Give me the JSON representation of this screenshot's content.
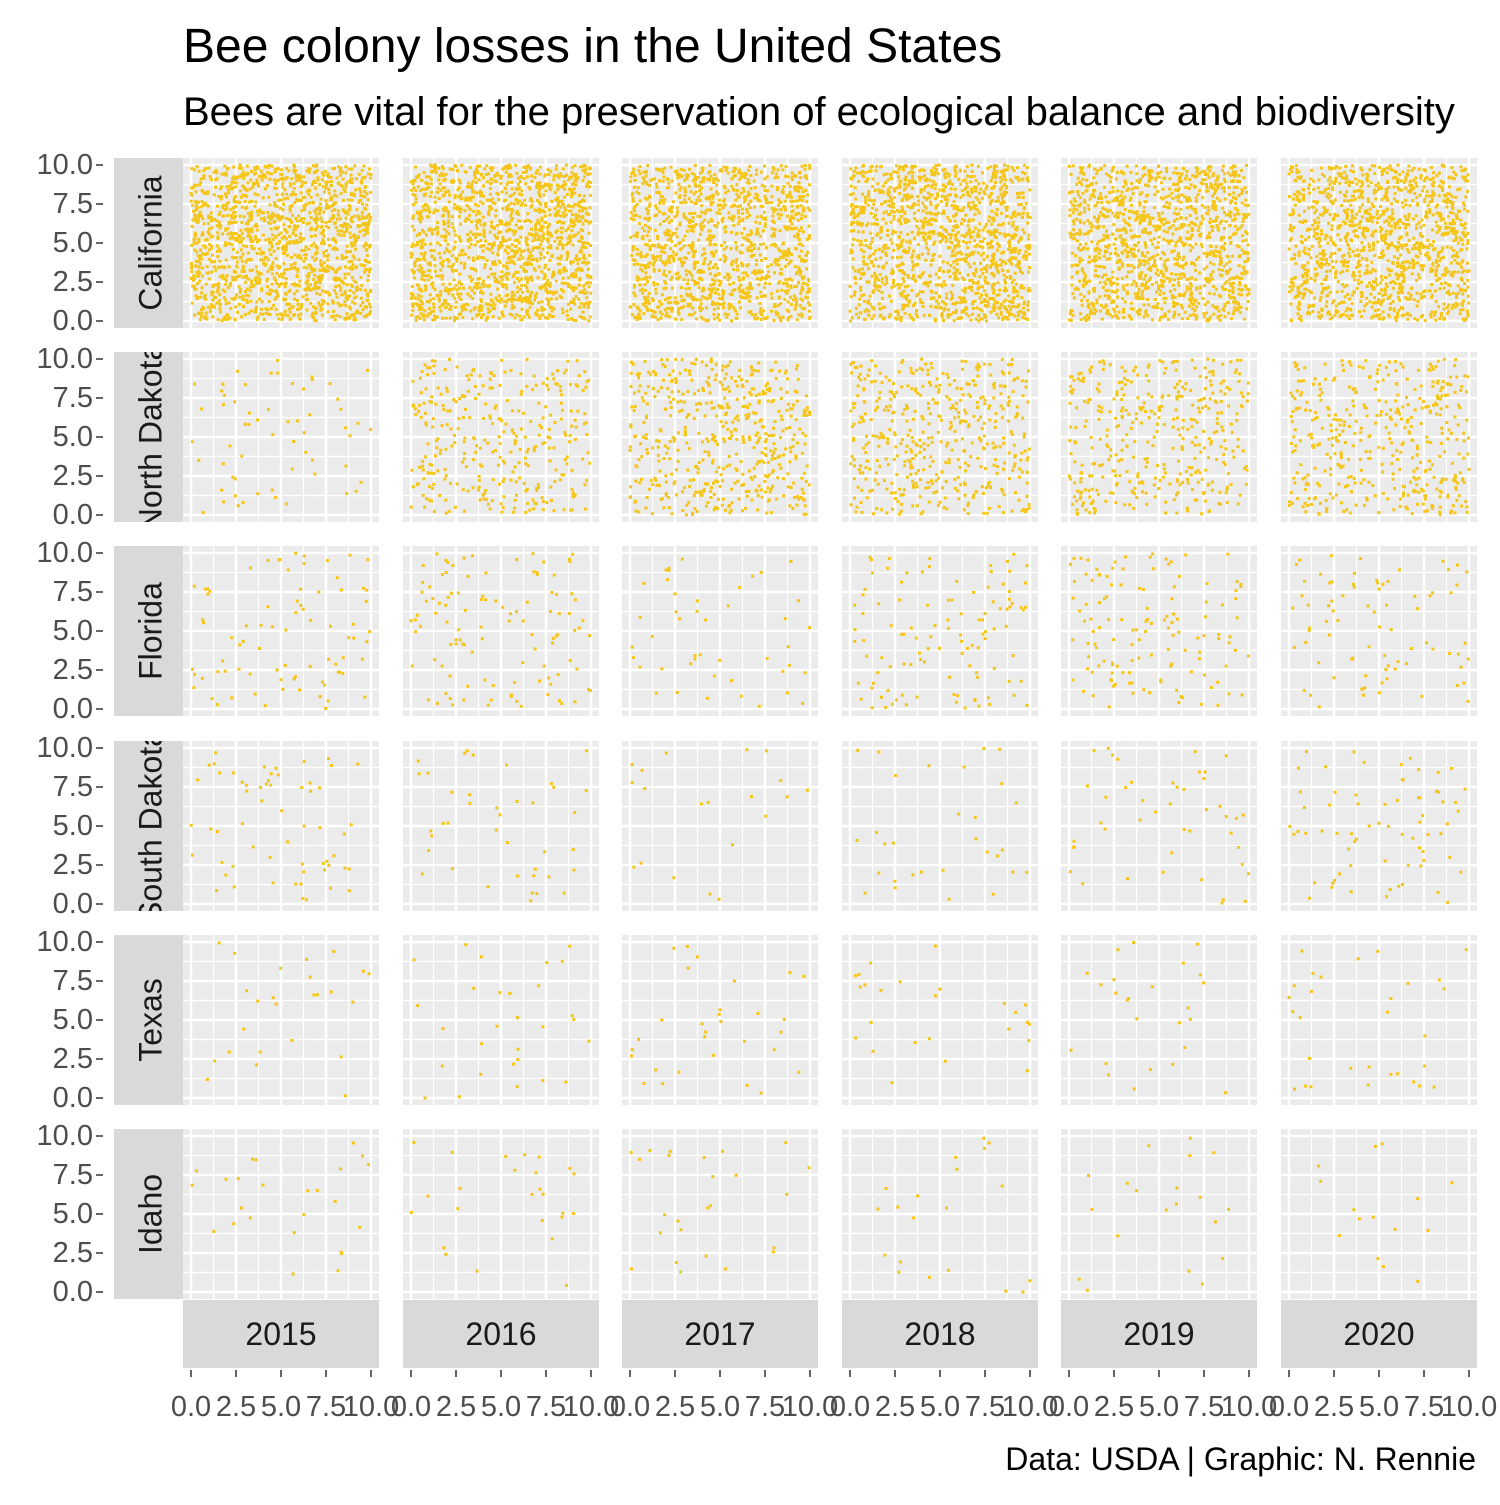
{
  "chart_data": {
    "type": "scatter",
    "title": "Bee colony losses in the United States",
    "subtitle": "Bees are vital for the preservation of ecological balance and biodiversity",
    "caption": "Data: USDA | Graphic: N. Rennie",
    "facet_columns": [
      "2015",
      "2016",
      "2017",
      "2018",
      "2019",
      "2020"
    ],
    "facet_rows": [
      "California",
      "North Dakota",
      "Florida",
      "South Dakota",
      "Texas",
      "Idaho"
    ],
    "xlim": [
      0,
      10
    ],
    "ylim": [
      0,
      10
    ],
    "x_ticks": [
      "0.0",
      "2.5",
      "5.0",
      "7.5",
      "10.0"
    ],
    "y_ticks": [
      "0.0",
      "2.5",
      "5.0",
      "7.5",
      "10.0"
    ],
    "grid": true,
    "point_color": "#F5C518",
    "panel_background": "#EBEBEB",
    "strip_background": "#D9D9D9",
    "approx_points_per_panel": [
      [
        1500,
        1500,
        1300,
        1400,
        1300,
        1250
      ],
      [
        60,
        330,
        520,
        470,
        390,
        420
      ],
      [
        80,
        110,
        45,
        110,
        130,
        80
      ],
      [
        60,
        40,
        20,
        30,
        45,
        70
      ],
      [
        25,
        30,
        30,
        25,
        25,
        30
      ],
      [
        25,
        25,
        25,
        20,
        20,
        15
      ]
    ]
  }
}
